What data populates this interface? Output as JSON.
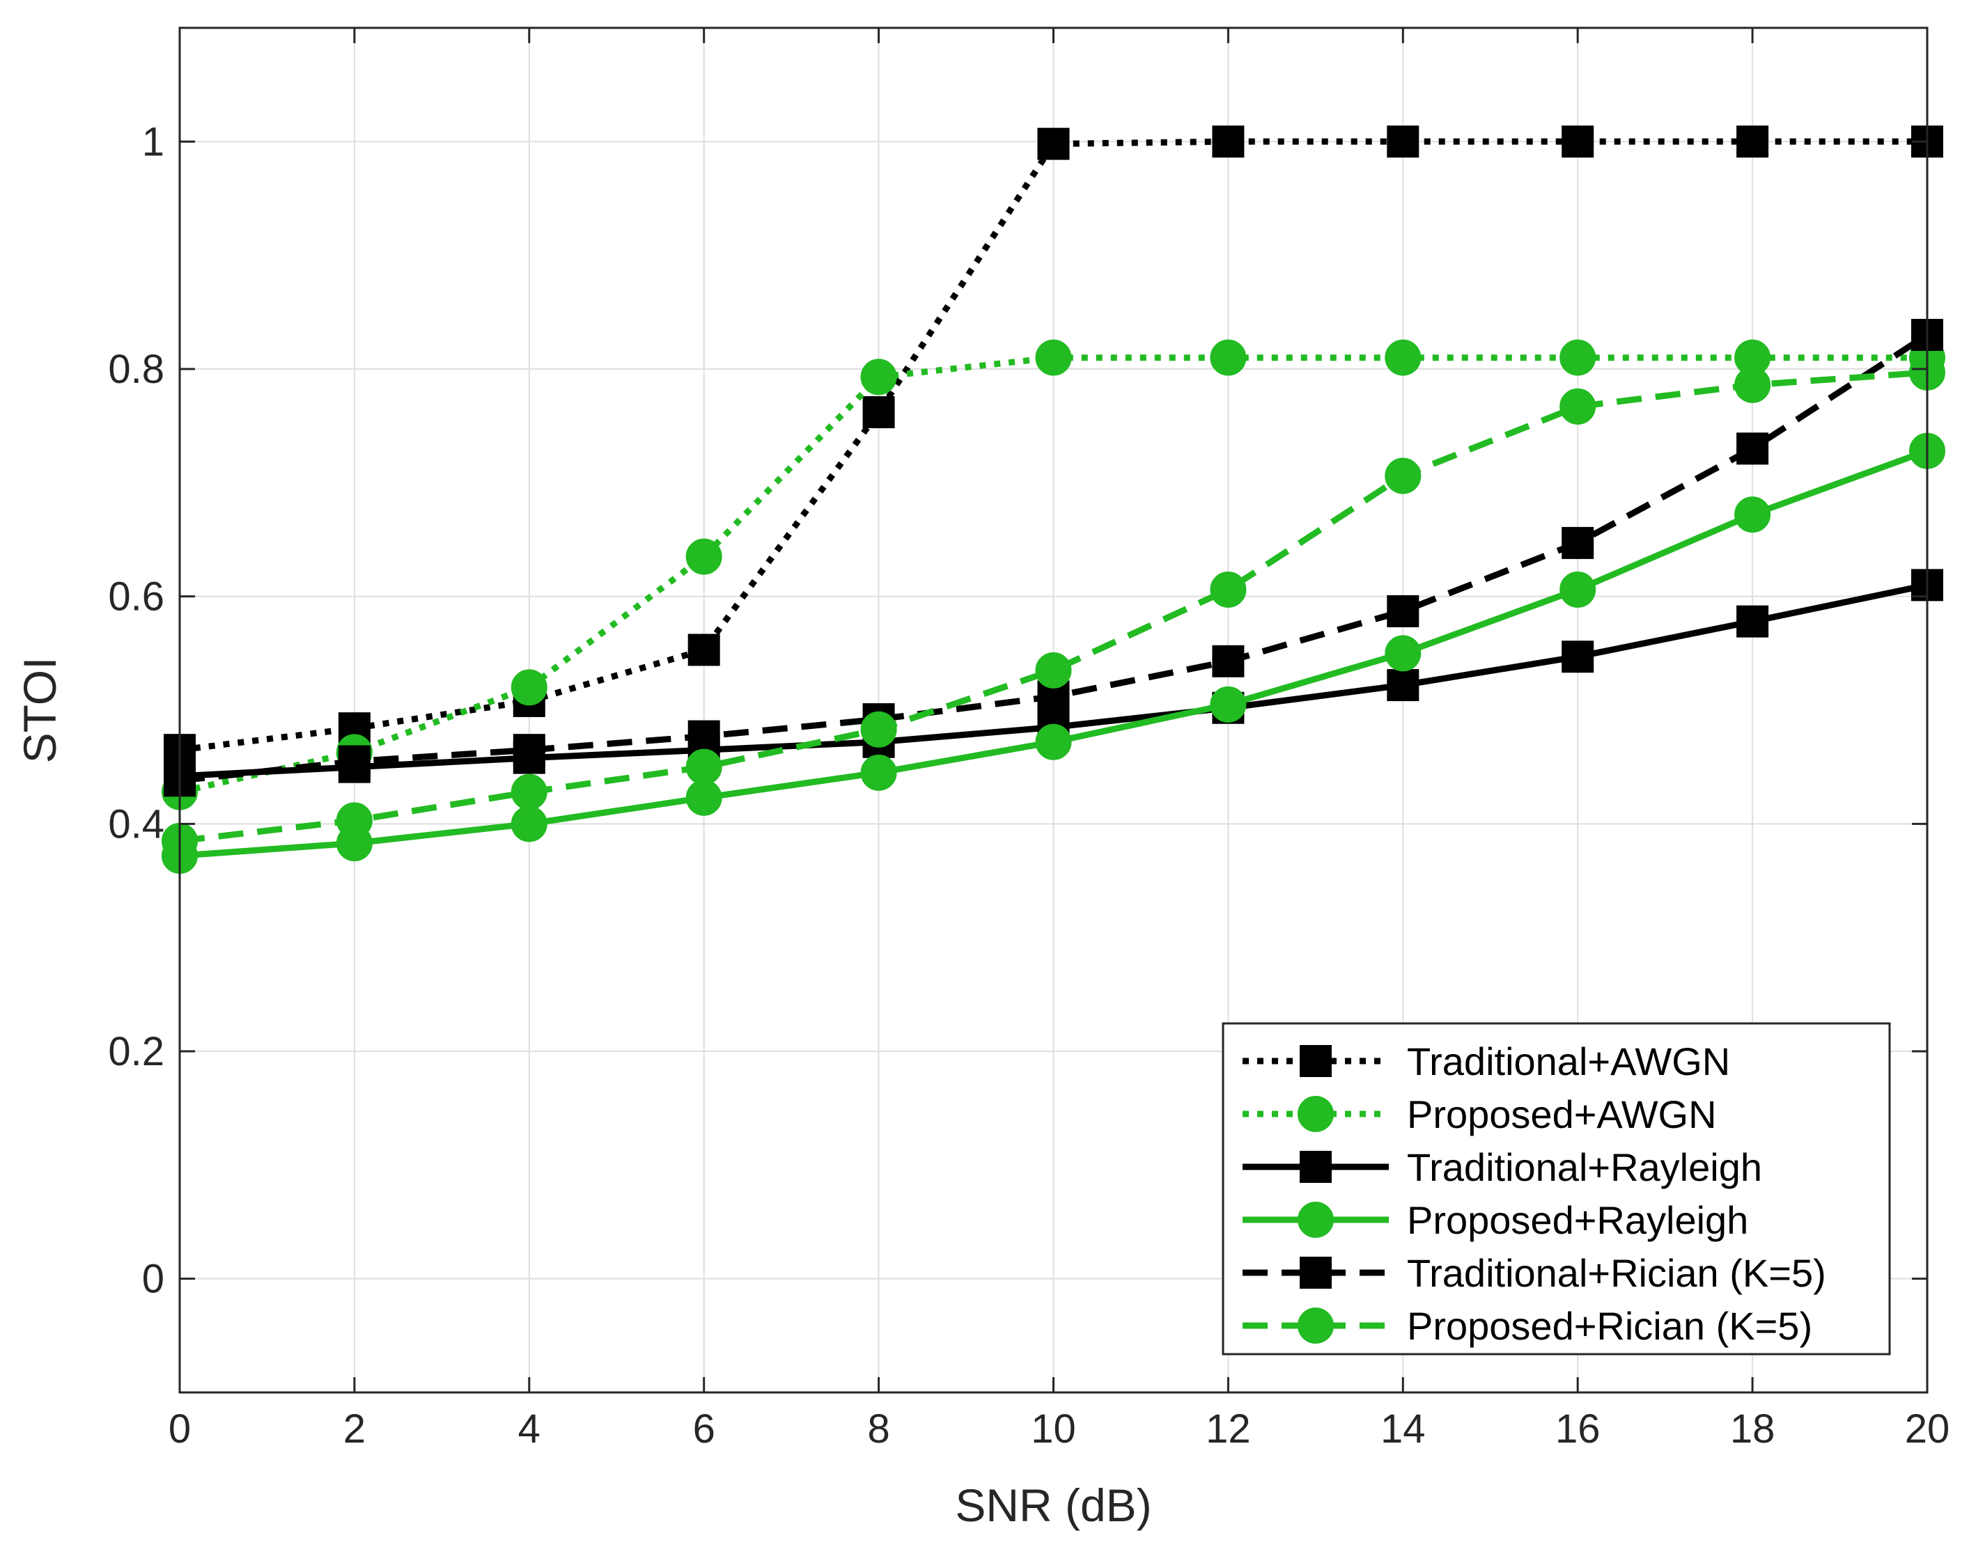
{
  "chart_data": {
    "type": "line",
    "title": "",
    "xlabel": "SNR (dB)",
    "ylabel": "STOI",
    "xlim": [
      0,
      20
    ],
    "ylim": [
      -0.1,
      1.1
    ],
    "xticks": [
      0,
      2,
      4,
      6,
      8,
      10,
      12,
      14,
      16,
      18,
      20
    ],
    "yticks": [
      0,
      0.2,
      0.4,
      0.6,
      0.8,
      1
    ],
    "ytick_labels": [
      "0",
      "0.2",
      "0.4",
      "0.6",
      "0.8",
      "1"
    ],
    "grid": true,
    "legend_location": "bottom-right",
    "x": [
      0,
      2,
      4,
      6,
      8,
      10,
      12,
      14,
      16,
      18,
      20
    ],
    "series": [
      {
        "name": "Traditional+AWGN",
        "color": "#000000",
        "line": "dotted",
        "marker": "square",
        "values": [
          0.465,
          0.484,
          0.508,
          0.553,
          0.762,
          0.998,
          1.0,
          1.0,
          1.0,
          1.0,
          1.0
        ]
      },
      {
        "name": "Proposed+AWGN",
        "color": "#22bb22",
        "line": "dotted",
        "marker": "circle",
        "values": [
          0.428,
          0.463,
          0.52,
          0.635,
          0.793,
          0.81,
          0.81,
          0.81,
          0.81,
          0.81,
          0.81
        ]
      },
      {
        "name": "Traditional+Rayleigh",
        "color": "#000000",
        "line": "solid",
        "marker": "square",
        "values": [
          0.442,
          0.45,
          0.458,
          0.465,
          0.472,
          0.485,
          0.502,
          0.522,
          0.547,
          0.578,
          0.61
        ]
      },
      {
        "name": "Proposed+Rayleigh",
        "color": "#22bb22",
        "line": "solid",
        "marker": "circle",
        "values": [
          0.372,
          0.383,
          0.4,
          0.423,
          0.445,
          0.472,
          0.505,
          0.55,
          0.606,
          0.672,
          0.728
        ]
      },
      {
        "name": "Traditional+Rician (K=5)",
        "color": "#000000",
        "line": "dashed",
        "marker": "square",
        "values": [
          0.438,
          0.455,
          0.465,
          0.477,
          0.492,
          0.512,
          0.543,
          0.587,
          0.647,
          0.73,
          0.83
        ]
      },
      {
        "name": "Proposed+Rician (K=5)",
        "color": "#22bb22",
        "line": "dashed",
        "marker": "circle",
        "values": [
          0.385,
          0.403,
          0.428,
          0.45,
          0.483,
          0.535,
          0.606,
          0.706,
          0.767,
          0.786,
          0.797
        ]
      }
    ]
  }
}
